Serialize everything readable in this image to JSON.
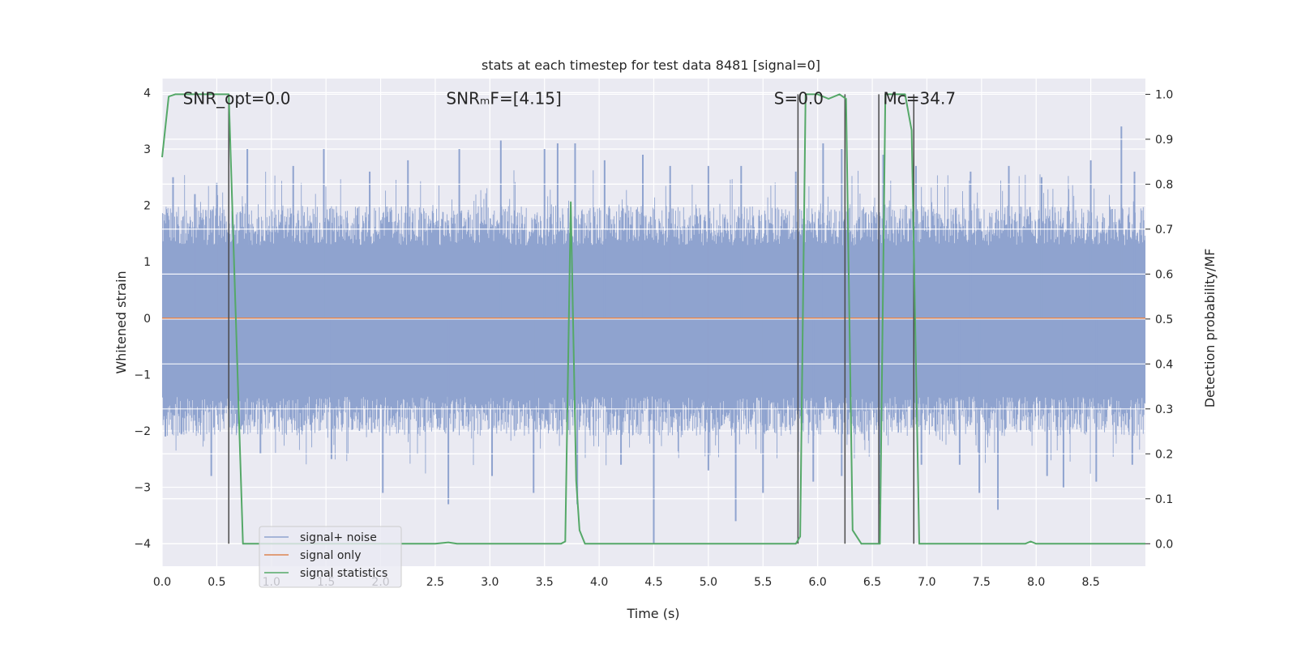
{
  "chart_data": {
    "type": "line",
    "title": "stats at each timestep for test data 8481 [signal=0]",
    "xlabel": "Time (s)",
    "ylabel": "Whitened strain",
    "ylabel_right": "Detection probability/MF",
    "xlim": [
      0.0,
      9.0
    ],
    "ylim": [
      -4.4,
      4.25
    ],
    "ylim_right": [
      -0.05,
      1.035
    ],
    "x_ticks": [
      0.0,
      0.5,
      1.0,
      1.5,
      2.0,
      2.5,
      3.0,
      3.5,
      4.0,
      4.5,
      5.0,
      5.5,
      6.0,
      6.5,
      7.0,
      7.5,
      8.0,
      8.5
    ],
    "x_tick_labels": [
      "0.0",
      "0.5",
      "1.0",
      "1.5",
      "2.0",
      "2.5",
      "3.0",
      "3.5",
      "4.0",
      "4.5",
      "5.0",
      "5.5",
      "6.0",
      "6.5",
      "7.0",
      "7.5",
      "8.0",
      "8.5"
    ],
    "y_ticks": [
      4,
      3,
      2,
      1,
      0,
      -1,
      -2,
      -3,
      -4
    ],
    "y_tick_labels": [
      "4",
      "3",
      "2",
      "1",
      "0",
      "−1",
      "−2",
      "−3",
      "−4"
    ],
    "y_right_ticks": [
      1.0,
      0.9,
      0.8,
      0.7,
      0.6,
      0.5,
      0.4,
      0.3,
      0.2,
      0.1,
      0.0
    ],
    "y_right_tick_labels": [
      "1.0",
      "0.9",
      "0.8",
      "0.7",
      "0.6",
      "0.5",
      "0.4",
      "0.3",
      "0.2",
      "0.1",
      "0.0"
    ],
    "grid": true,
    "legend_position": "bottom-left",
    "annotations": [
      {
        "id": "snr-opt",
        "text": "SNR_opt=0.0",
        "x": 0.19,
        "y": 3.9
      },
      {
        "id": "snr-mf",
        "text": "SNRₘF=[4.15]",
        "x": 2.6,
        "y": 3.9
      },
      {
        "id": "s-value",
        "text": "S=0.0",
        "x": 5.6,
        "y": 3.9
      },
      {
        "id": "mc-value",
        "text": "Mᴄ=34.7",
        "x": 6.6,
        "y": 3.9
      }
    ],
    "series": [
      {
        "name": "signal+ noise",
        "color": "#8fa3cf",
        "axis": "left",
        "band_upper": 1.5,
        "band_lower": -1.6,
        "peak_up": [
          [
            0.1,
            2.5
          ],
          [
            0.3,
            2.2
          ],
          [
            0.5,
            2.4
          ],
          [
            0.78,
            3.0
          ],
          [
            1.2,
            2.7
          ],
          [
            1.48,
            3.0
          ],
          [
            1.9,
            2.6
          ],
          [
            2.25,
            2.8
          ],
          [
            2.72,
            3.0
          ],
          [
            3.1,
            3.15
          ],
          [
            3.5,
            3.0
          ],
          [
            3.62,
            3.1
          ],
          [
            3.78,
            3.1
          ],
          [
            4.05,
            2.8
          ],
          [
            4.4,
            2.9
          ],
          [
            4.65,
            2.7
          ],
          [
            5.0,
            2.7
          ],
          [
            5.3,
            2.7
          ],
          [
            5.8,
            2.6
          ],
          [
            6.05,
            3.1
          ],
          [
            6.22,
            3.0
          ],
          [
            6.6,
            2.9
          ],
          [
            6.9,
            2.7
          ],
          [
            7.4,
            2.6
          ],
          [
            7.75,
            2.7
          ],
          [
            8.05,
            2.5
          ],
          [
            8.5,
            2.8
          ],
          [
            8.78,
            3.4
          ],
          [
            8.9,
            2.6
          ]
        ],
        "peak_down": [
          [
            0.03,
            -2.1
          ],
          [
            0.45,
            -2.8
          ],
          [
            0.9,
            -2.4
          ],
          [
            1.55,
            -2.5
          ],
          [
            2.02,
            -3.1
          ],
          [
            2.62,
            -3.3
          ],
          [
            3.02,
            -2.8
          ],
          [
            3.4,
            -3.1
          ],
          [
            3.8,
            -3.3
          ],
          [
            4.2,
            -2.6
          ],
          [
            4.5,
            -4.0
          ],
          [
            5.0,
            -2.7
          ],
          [
            5.25,
            -3.6
          ],
          [
            5.5,
            -3.1
          ],
          [
            5.96,
            -2.9
          ],
          [
            6.22,
            -2.8
          ],
          [
            6.57,
            -3.3
          ],
          [
            6.95,
            -2.6
          ],
          [
            7.3,
            -2.6
          ],
          [
            7.48,
            -3.1
          ],
          [
            7.65,
            -3.4
          ],
          [
            8.1,
            -2.8
          ],
          [
            8.25,
            -3.0
          ],
          [
            8.55,
            -2.9
          ],
          [
            8.88,
            -2.6
          ]
        ]
      },
      {
        "name": "signal only",
        "color": "#dd8452",
        "axis": "left",
        "x": [
          0.0,
          9.0
        ],
        "y": [
          0.0,
          0.0
        ]
      },
      {
        "name": "signal statistics",
        "color": "#55a868",
        "axis": "right",
        "x": [
          0.0,
          0.06,
          0.12,
          0.3,
          0.5,
          0.61,
          0.74,
          0.8,
          1.2,
          2.0,
          2.5,
          2.62,
          2.7,
          3.5,
          3.65,
          3.69,
          3.74,
          3.79,
          3.82,
          3.87,
          4.0,
          5.0,
          5.8,
          5.84,
          5.89,
          6.0,
          6.1,
          6.2,
          6.26,
          6.32,
          6.4,
          6.5,
          6.57,
          6.62,
          6.8,
          6.86,
          6.93,
          7.0,
          7.5,
          7.9,
          7.95,
          8.0,
          8.5,
          9.0
        ],
        "y": [
          0.86,
          0.995,
          1.0,
          1.0,
          1.0,
          1.0,
          0.0,
          0.0,
          0.0,
          0.0,
          0.0,
          0.003,
          0.0,
          0.0,
          0.0,
          0.005,
          0.76,
          0.14,
          0.03,
          0.0,
          0.0,
          0.0,
          0.0,
          0.016,
          1.0,
          1.0,
          0.99,
          1.0,
          0.99,
          0.03,
          0.0,
          0.0,
          0.0,
          1.0,
          1.0,
          0.92,
          0.0,
          0.0,
          0.0,
          0.0,
          0.005,
          0.0,
          0.0,
          0.0
        ]
      }
    ],
    "vlines": [
      0.61,
      5.82,
      6.25,
      6.56,
      6.88
    ]
  }
}
